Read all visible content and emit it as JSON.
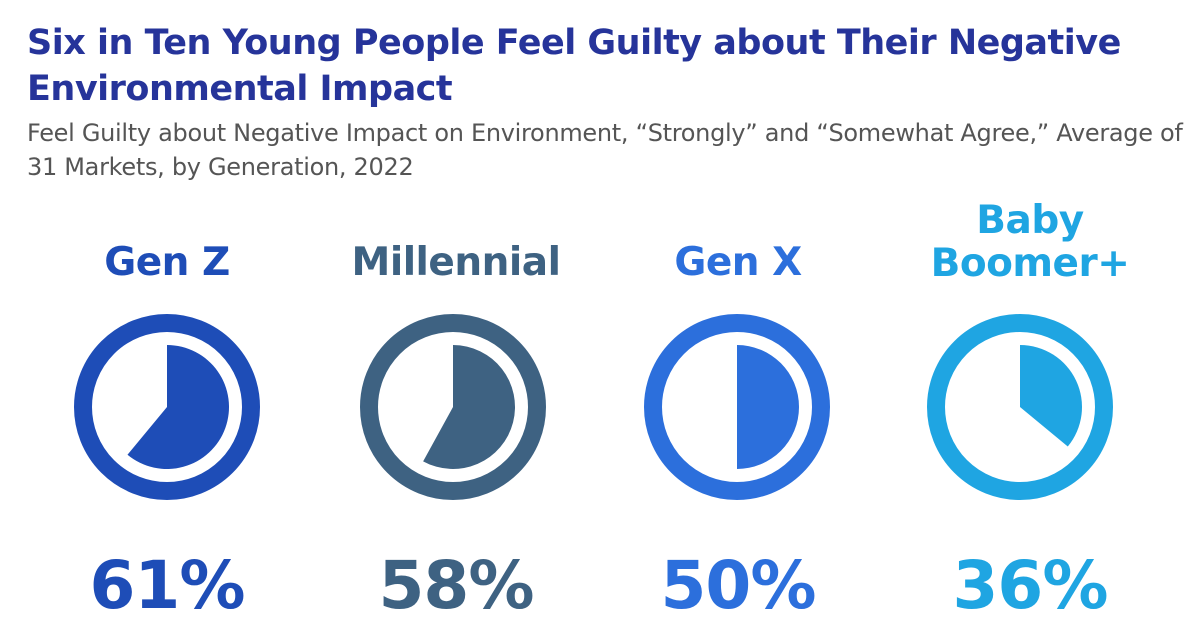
{
  "chart_data": {
    "type": "pie",
    "title": "Six in Ten Young People Feel Guilty about Their Negative Environmental Impact",
    "subtitle": "Feel Guilty about Negative Impact on Environment, “Strongly” and “Somewhat Agree,” Average of 31 Markets, by Generation, 2022",
    "series": [
      {
        "name": "Gen Z",
        "value": 61,
        "label": "61%",
        "color": "#1e4db7"
      },
      {
        "name": "Millennial",
        "value": 58,
        "label": "58%",
        "color": "#3e6282"
      },
      {
        "name": "Gen X",
        "value": 50,
        "label": "50%",
        "color": "#2c6fdc"
      },
      {
        "name": "Baby Boomer+",
        "value": 36,
        "label": "36%",
        "color": "#1fa5e2"
      }
    ]
  }
}
